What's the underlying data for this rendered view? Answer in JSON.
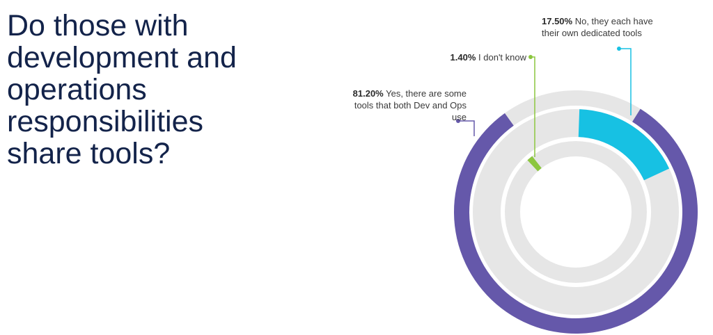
{
  "chart_data": {
    "type": "radial-bar",
    "title": "Do those with development and operations responsibilities share tools?",
    "categories": [
      "Yes, there are some tools that both Dev and Ops use",
      "I don't know",
      "No, they each have their own dedicated tools"
    ],
    "values": [
      81.2,
      1.4,
      17.5
    ],
    "value_labels": [
      "81.20%",
      "1.40%",
      "17.50%"
    ],
    "colors": [
      "#6558aa",
      "#8cc63f",
      "#17c1e3"
    ],
    "track_color": "#e6e6e6"
  }
}
